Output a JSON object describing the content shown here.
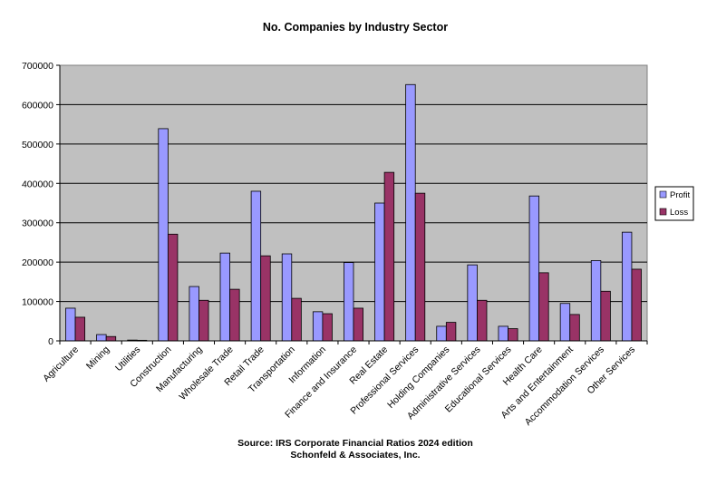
{
  "chart_data": {
    "type": "bar",
    "title": "No. Companies by Industry Sector",
    "source_lines": [
      "Source: IRS Corporate Financial Ratios 2024 edition",
      "Schonfeld & Associates, Inc."
    ],
    "categories": [
      "Agriculture",
      "Mining",
      "Utilities",
      "Construction",
      "Manufacturing",
      "Wholesale Trade",
      "Retail Trade",
      "Transportation",
      "Information",
      "Finance and Insurance",
      "Real Estate",
      "Professional Services",
      "Holding Companies",
      "Administrative Services",
      "Educational Services",
      "Health Care",
      "Arts and Entertainment",
      "Accommodation Services",
      "Other Services"
    ],
    "series": [
      {
        "name": "Profit",
        "color": "#9999ff",
        "values": [
          83000,
          16000,
          2000,
          539000,
          138000,
          223000,
          380000,
          221000,
          74000,
          199000,
          350000,
          651000,
          37000,
          193000,
          37000,
          368000,
          95000,
          204000,
          276000
        ]
      },
      {
        "name": "Loss",
        "color": "#993366",
        "values": [
          60000,
          11000,
          1500,
          271000,
          103000,
          131000,
          216000,
          108000,
          69000,
          83000,
          428000,
          375000,
          47000,
          103000,
          31000,
          173000,
          67000,
          126000,
          182000
        ]
      }
    ],
    "yticks": [
      "0",
      "100000",
      "200000",
      "300000",
      "400000",
      "500000",
      "600000",
      "700000"
    ],
    "ylim": [
      0,
      700000
    ],
    "xlabel": "",
    "ylabel": "",
    "grid": true,
    "legend": "right",
    "plot_background": "#c0c0c0"
  }
}
